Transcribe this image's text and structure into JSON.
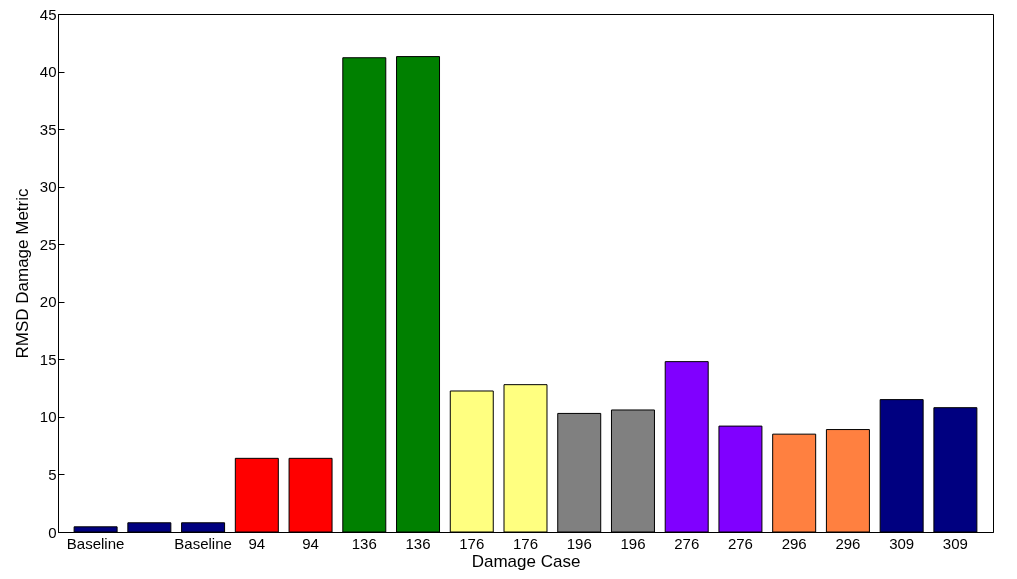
{
  "chart_data": {
    "type": "bar",
    "xlabel": "Damage Case",
    "ylabel": "RMSD Damage Metric",
    "categories": [
      "Baseline",
      null,
      "Baseline",
      "94",
      "94",
      "136",
      "136",
      "176",
      "176",
      "196",
      "196",
      "276",
      "276",
      "296",
      "296",
      "309",
      "309"
    ],
    "values": [
      0.45,
      0.8,
      0.8,
      6.4,
      6.4,
      41.2,
      41.3,
      12.25,
      12.8,
      10.3,
      10.6,
      14.8,
      9.2,
      8.5,
      8.9,
      11.5,
      10.8
    ],
    "colors": [
      "#000080",
      "#000080",
      "#000080",
      "#ff0000",
      "#ff0000",
      "#008000",
      "#008000",
      "#ffff80",
      "#ffff80",
      "#808080",
      "#808080",
      "#8000ff",
      "#8000ff",
      "#ff8040",
      "#ff8040",
      "#000080",
      "#000080"
    ],
    "ylim": [
      0,
      45
    ],
    "yticks": [
      0,
      5,
      10,
      15,
      20,
      25,
      30,
      35,
      40,
      45
    ]
  }
}
